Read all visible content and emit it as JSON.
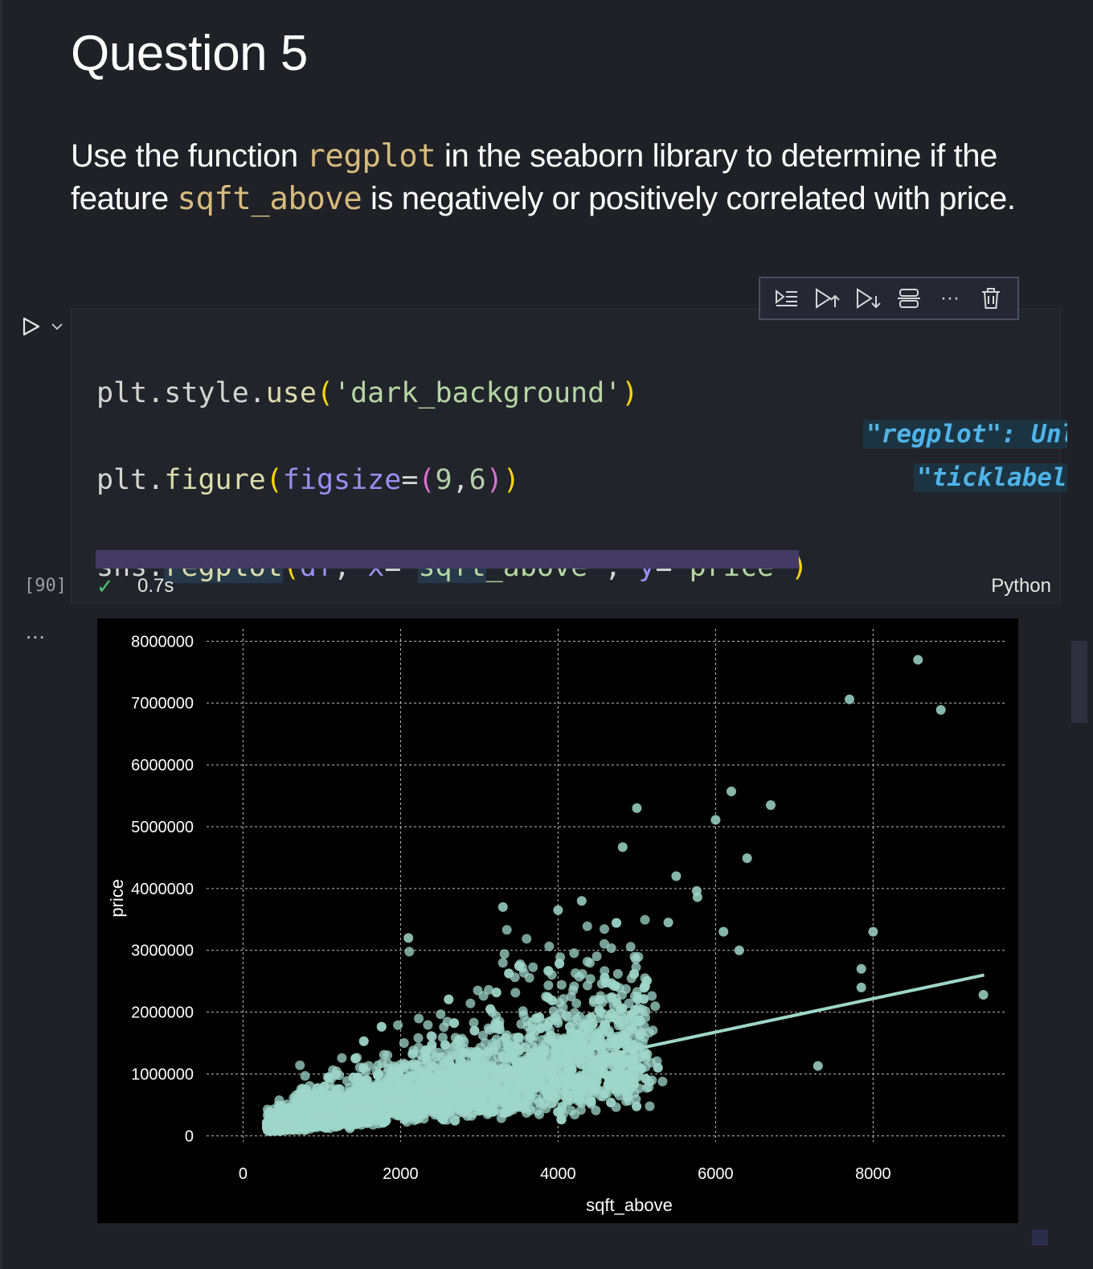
{
  "markdown": {
    "title": "Question 5",
    "para_prefix": "Use the function ",
    "para_code1": "regplot",
    "para_mid": " in the seaborn library to determine if the feature ",
    "para_code2": "sqft_above",
    "para_suffix": " is negatively or positively correlated with price."
  },
  "cell": {
    "execution_count": "[90]",
    "elapsed": "0.7s",
    "language": "Python",
    "output_menu": "...",
    "hints": {
      "regplot": "\"regplot\": Unl",
      "ticklabel": "\"ticklabel"
    }
  },
  "toolbar": {
    "items": [
      "run-by-line-icon",
      "execute-above-icon",
      "execute-below-icon",
      "split-cell-icon",
      "more-icon",
      "delete-icon"
    ],
    "more_label": "···"
  },
  "colors": {
    "background": "#1f2127",
    "inline_code": "#d7ba7d",
    "points": "#9fd6c9",
    "progress": "#433b63",
    "success": "#4ec46a"
  },
  "chart_data": {
    "type": "scatter",
    "xlabel": "sqft_above",
    "ylabel": "price",
    "x_ticks": [
      0,
      2000,
      4000,
      6000,
      8000
    ],
    "y_ticks": [
      "0",
      "1000000",
      "2000000",
      "3000000",
      "4000000",
      "5000000",
      "6000000",
      "7000000",
      "8000000"
    ],
    "xlim": [
      -300,
      9700
    ],
    "ylim": [
      -100000,
      8200000
    ],
    "grid": "on",
    "style": "dark_background",
    "regression_line": {
      "x": [
        290,
        9410
      ],
      "y": [
        130000,
        2600000
      ]
    },
    "outliers": [
      [
        8570,
        7700000
      ],
      [
        7700,
        7060000
      ],
      [
        8860,
        6890000
      ],
      [
        5000,
        5300000
      ],
      [
        6200,
        5570000
      ],
      [
        6700,
        5350000
      ],
      [
        6000,
        5110000
      ],
      [
        4820,
        4670000
      ],
      [
        6400,
        4490000
      ],
      [
        5500,
        4200000
      ],
      [
        5760,
        3960000
      ],
      [
        5770,
        3860000
      ],
      [
        8000,
        3300000
      ],
      [
        7850,
        2700000
      ],
      [
        7850,
        2400000
      ],
      [
        9400,
        2280000
      ],
      [
        7300,
        1130000
      ],
      [
        6100,
        3300000
      ],
      [
        6300,
        3000000
      ],
      [
        3300,
        3700000
      ],
      [
        4000,
        3650000
      ],
      [
        2100,
        3200000
      ],
      [
        5400,
        3450000
      ],
      [
        4300,
        3800000
      ]
    ],
    "dense_cloud": {
      "x_range": [
        300,
        5500
      ],
      "y_range": [
        75000,
        3500000
      ],
      "points_drawn": 4000
    }
  }
}
